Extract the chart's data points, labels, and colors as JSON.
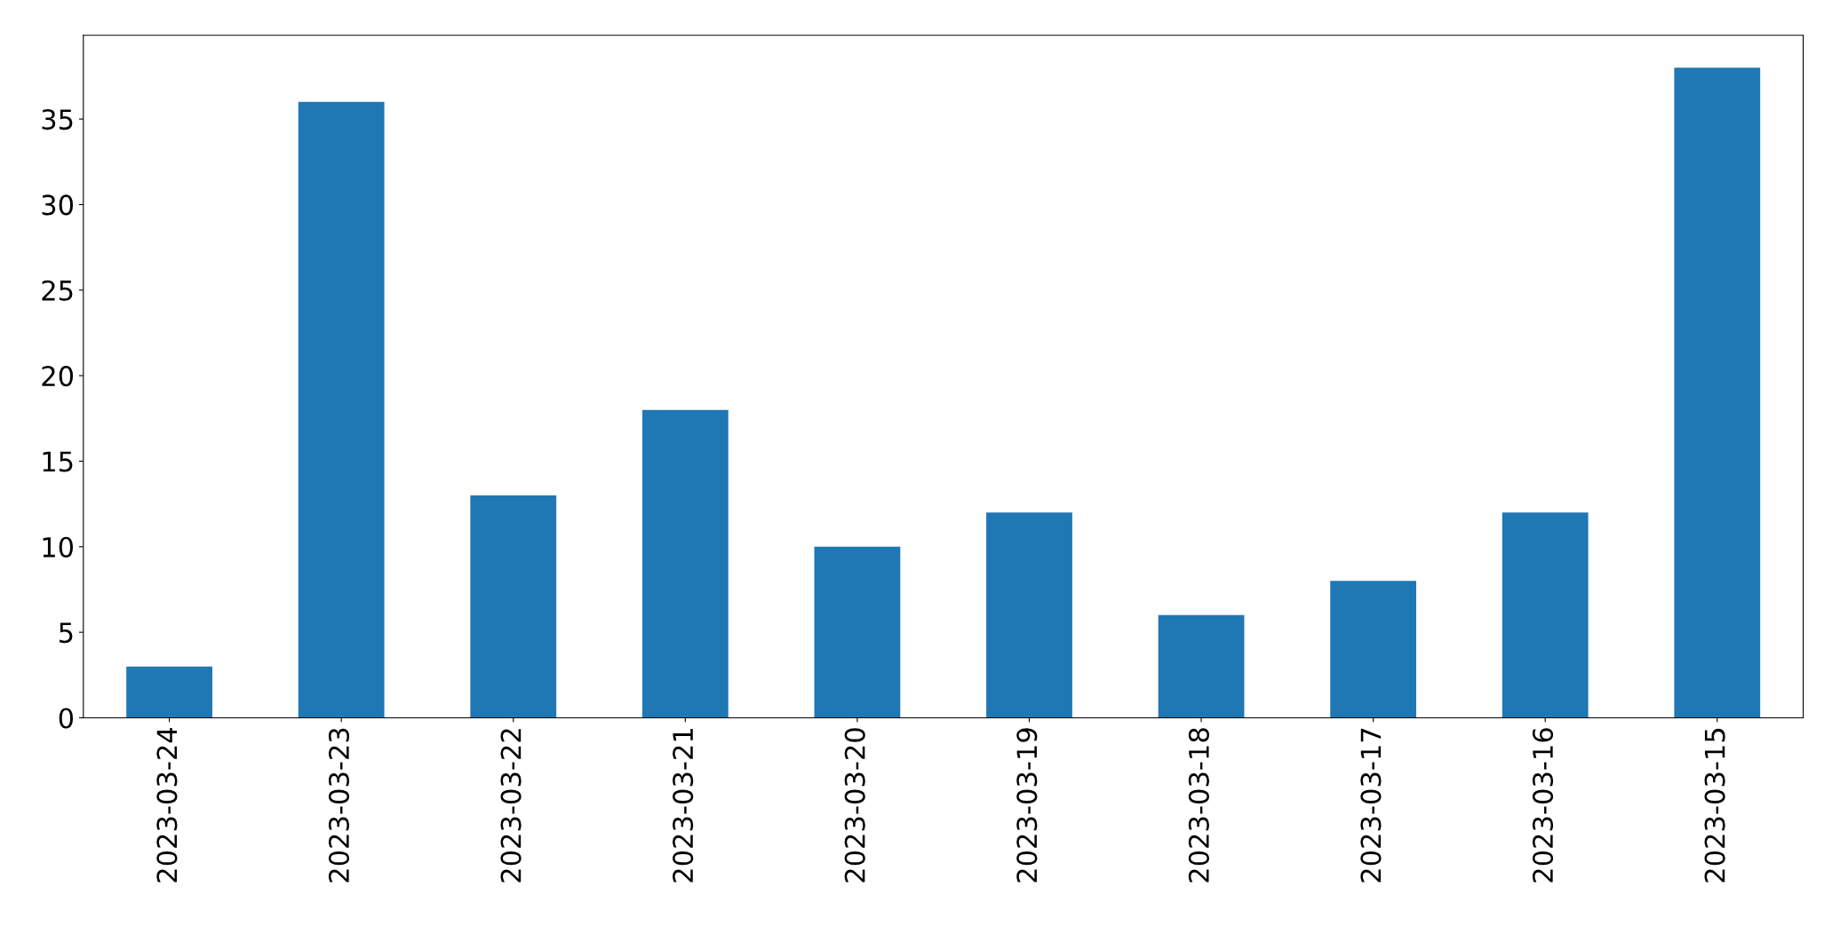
{
  "chart_data": {
    "type": "bar",
    "categories": [
      "2023-03-24",
      "2023-03-23",
      "2023-03-22",
      "2023-03-21",
      "2023-03-20",
      "2023-03-19",
      "2023-03-18",
      "2023-03-17",
      "2023-03-16",
      "2023-03-15"
    ],
    "values": [
      3,
      36,
      13,
      18,
      10,
      12,
      6,
      8,
      12,
      38
    ],
    "color": "#1f77b4",
    "ylim": [
      0,
      39.9
    ],
    "yticks": [
      0,
      5,
      10,
      15,
      20,
      25,
      30,
      35
    ],
    "grid": false,
    "legend": false
  }
}
